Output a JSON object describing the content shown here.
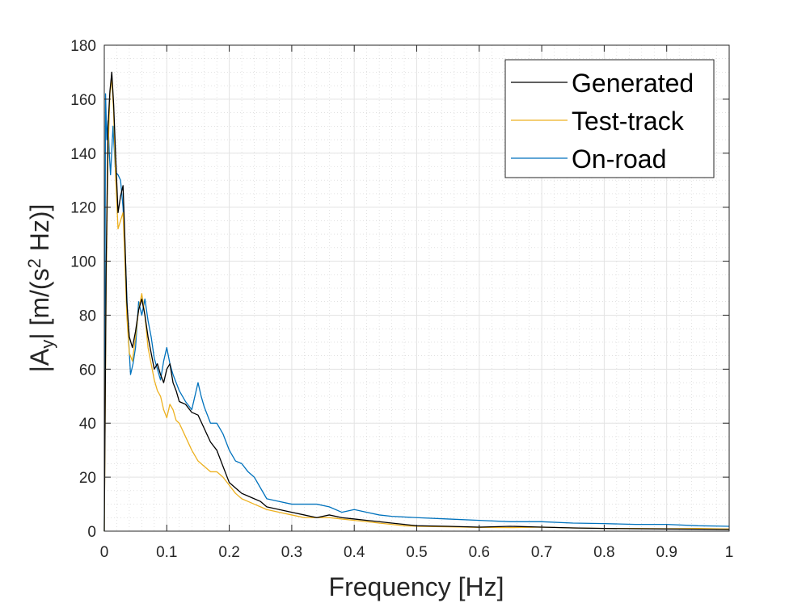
{
  "chart_data": {
    "type": "line",
    "title": "",
    "xlabel": "Frequency [Hz]",
    "ylabel": {
      "prefix": "|A",
      "subscript": "y",
      "middle": "| [m/(s",
      "superscript": "2",
      "suffix": " Hz)]"
    },
    "xlim": [
      0,
      1
    ],
    "ylim": [
      0,
      180
    ],
    "xticks": [
      "0",
      "0.1",
      "0.2",
      "0.3",
      "0.4",
      "0.5",
      "0.6",
      "0.7",
      "0.8",
      "0.9",
      "1"
    ],
    "yticks": [
      "0",
      "20",
      "40",
      "60",
      "80",
      "100",
      "120",
      "140",
      "160",
      "180"
    ],
    "grid": true,
    "minor_grid": true,
    "legend_position": "top-right",
    "series": [
      {
        "name": "Generated",
        "color": "#000000",
        "x": [
          0,
          0.003,
          0.006,
          0.009,
          0.012,
          0.015,
          0.018,
          0.022,
          0.026,
          0.03,
          0.033,
          0.036,
          0.04,
          0.045,
          0.05,
          0.055,
          0.06,
          0.065,
          0.07,
          0.075,
          0.08,
          0.085,
          0.09,
          0.095,
          0.1,
          0.105,
          0.11,
          0.115,
          0.12,
          0.13,
          0.14,
          0.15,
          0.16,
          0.17,
          0.18,
          0.19,
          0.2,
          0.21,
          0.22,
          0.23,
          0.24,
          0.25,
          0.26,
          0.28,
          0.3,
          0.32,
          0.34,
          0.36,
          0.38,
          0.4,
          0.42,
          0.44,
          0.46,
          0.48,
          0.5,
          0.55,
          0.6,
          0.65,
          0.7,
          0.75,
          0.8,
          0.85,
          0.9,
          0.95,
          1.0
        ],
        "y": [
          0,
          98,
          150,
          163,
          170,
          158,
          140,
          118,
          124,
          128,
          108,
          85,
          72,
          68,
          74,
          82,
          86,
          80,
          72,
          66,
          60,
          62,
          58,
          55,
          60,
          62,
          55,
          52,
          48,
          47,
          44,
          43,
          38,
          33,
          30,
          24,
          18,
          16,
          14,
          13,
          12,
          11,
          9,
          8,
          7,
          6,
          5,
          6,
          5,
          4.5,
          4,
          3.5,
          3,
          2.5,
          2,
          1.8,
          1.5,
          1.8,
          1.5,
          1.2,
          1,
          0.9,
          0.8,
          0.7,
          0.6
        ]
      },
      {
        "name": "Test-track",
        "color": "#EDB120",
        "x": [
          0,
          0.003,
          0.006,
          0.009,
          0.012,
          0.015,
          0.018,
          0.022,
          0.026,
          0.03,
          0.033,
          0.036,
          0.04,
          0.045,
          0.05,
          0.055,
          0.06,
          0.065,
          0.07,
          0.075,
          0.08,
          0.085,
          0.09,
          0.095,
          0.1,
          0.105,
          0.11,
          0.115,
          0.12,
          0.13,
          0.14,
          0.15,
          0.16,
          0.17,
          0.18,
          0.19,
          0.2,
          0.21,
          0.22,
          0.23,
          0.24,
          0.25,
          0.26,
          0.28,
          0.3,
          0.32,
          0.34,
          0.36,
          0.38,
          0.4,
          0.42,
          0.44,
          0.46,
          0.48,
          0.5,
          0.55,
          0.6,
          0.65,
          0.7,
          0.75,
          0.8,
          0.85,
          0.9,
          0.95,
          1.0
        ],
        "y": [
          0,
          92,
          140,
          162,
          168,
          155,
          132,
          112,
          115,
          118,
          100,
          80,
          66,
          63,
          72,
          82,
          88,
          80,
          68,
          62,
          56,
          52,
          50,
          45,
          42,
          47,
          45,
          41,
          40,
          35,
          30,
          26,
          24,
          22,
          22,
          20,
          17,
          14,
          12,
          11,
          10,
          9,
          8,
          7,
          6,
          5,
          5,
          5,
          4.5,
          4,
          3.5,
          3,
          2.5,
          2,
          1.8,
          1.6,
          1.4,
          1.3,
          1.5,
          1.2,
          1,
          1,
          0.9,
          1,
          0.8
        ]
      },
      {
        "name": "On-road",
        "color": "#0072BD",
        "x": [
          0,
          0.002,
          0.004,
          0.006,
          0.008,
          0.01,
          0.014,
          0.018,
          0.022,
          0.026,
          0.03,
          0.034,
          0.038,
          0.042,
          0.046,
          0.05,
          0.055,
          0.06,
          0.065,
          0.07,
          0.075,
          0.08,
          0.085,
          0.09,
          0.095,
          0.1,
          0.105,
          0.11,
          0.12,
          0.13,
          0.14,
          0.15,
          0.155,
          0.16,
          0.17,
          0.18,
          0.19,
          0.2,
          0.21,
          0.22,
          0.23,
          0.24,
          0.25,
          0.26,
          0.28,
          0.3,
          0.32,
          0.34,
          0.36,
          0.38,
          0.4,
          0.42,
          0.44,
          0.46,
          0.5,
          0.55,
          0.6,
          0.65,
          0.7,
          0.75,
          0.8,
          0.85,
          0.9,
          0.95,
          1.0
        ],
        "y": [
          0,
          162,
          145,
          152,
          140,
          132,
          150,
          133,
          132,
          130,
          120,
          100,
          75,
          58,
          62,
          68,
          85,
          80,
          86,
          78,
          72,
          64,
          60,
          56,
          63,
          68,
          62,
          58,
          52,
          48,
          45,
          55,
          50,
          46,
          40,
          40,
          36,
          30,
          26,
          25,
          22,
          20,
          16,
          12,
          11,
          10,
          10,
          10,
          9,
          7,
          8,
          7,
          6,
          5.5,
          5,
          4.5,
          4,
          3.5,
          3.5,
          3,
          2.8,
          2.5,
          2.5,
          2,
          1.8
        ]
      }
    ]
  }
}
